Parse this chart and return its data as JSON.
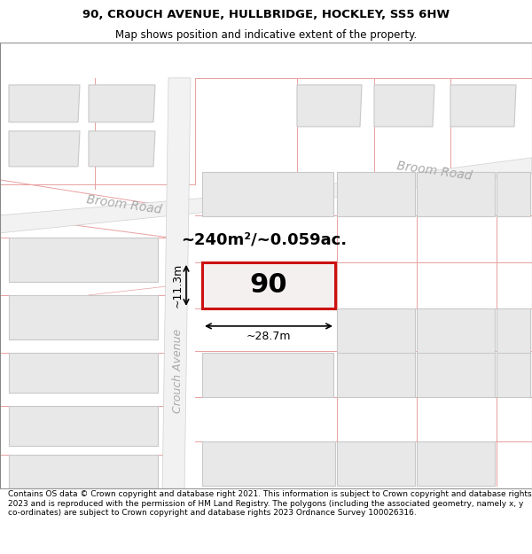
{
  "title_line1": "90, CROUCH AVENUE, HULLBRIDGE, HOCKLEY, SS5 6HW",
  "title_line2": "Map shows position and indicative extent of the property.",
  "footer_text": "Contains OS data © Crown copyright and database right 2021. This information is subject to Crown copyright and database rights 2023 and is reproduced with the permission of HM Land Registry. The polygons (including the associated geometry, namely x, y co-ordinates) are subject to Crown copyright and database rights 2023 Ordnance Survey 100026316.",
  "label_90": "90",
  "area_label": "~240m²/~0.059ac.",
  "dim_width": "~28.7m",
  "dim_height": "~11.3m",
  "road_label_left": "Broom Road",
  "road_label_right": "Broom Road",
  "street_label": "Crouch Avenue",
  "map_bg": "#f8f8f8",
  "building_fill": "#e8e8e8",
  "building_edge": "#c8c8c8",
  "road_fill": "#f0f0f0",
  "highlight_fill": "#f5f0f0",
  "highlight_edge": "#cc1111",
  "boundary_color": "#e8a0a0",
  "road_label_color": "#aaaaaa",
  "title_fontsize": 9.5,
  "subtitle_fontsize": 8.5,
  "footer_fontsize": 6.5,
  "area_fontsize": 13,
  "label_90_fontsize": 22,
  "dim_fontsize": 9,
  "road_label_fontsize": 10,
  "street_label_fontsize": 9
}
